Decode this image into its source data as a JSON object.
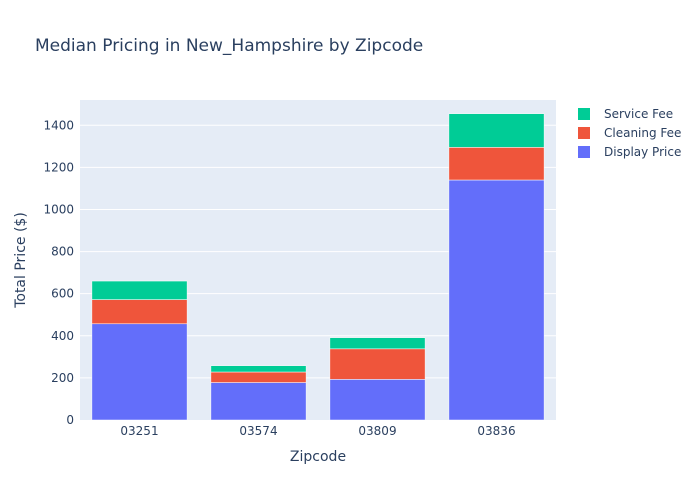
{
  "chart_data": {
    "type": "bar",
    "stacked": true,
    "title": "Median Pricing in New_Hampshire by Zipcode",
    "xlabel": "Zipcode",
    "ylabel": "Total Price ($)",
    "categories": [
      "03251",
      "03574",
      "03809",
      "03836"
    ],
    "ylim": [
      0,
      1520
    ],
    "yticks": [
      0,
      200,
      400,
      600,
      800,
      1000,
      1200,
      1400
    ],
    "series": [
      {
        "name": "Display Price",
        "color": "#636efa",
        "values": [
          457,
          178,
          193,
          1140
        ]
      },
      {
        "name": "Cleaning Fee",
        "color": "#ef553b",
        "values": [
          115,
          50,
          145,
          155
        ]
      },
      {
        "name": "Service Fee",
        "color": "#00cc96",
        "values": [
          88,
          30,
          53,
          160
        ]
      }
    ],
    "legend": {
      "position": "top-right",
      "order": [
        "Service Fee",
        "Cleaning Fee",
        "Display Price"
      ]
    },
    "plot_background": "#e5ecf6",
    "grid": true
  }
}
